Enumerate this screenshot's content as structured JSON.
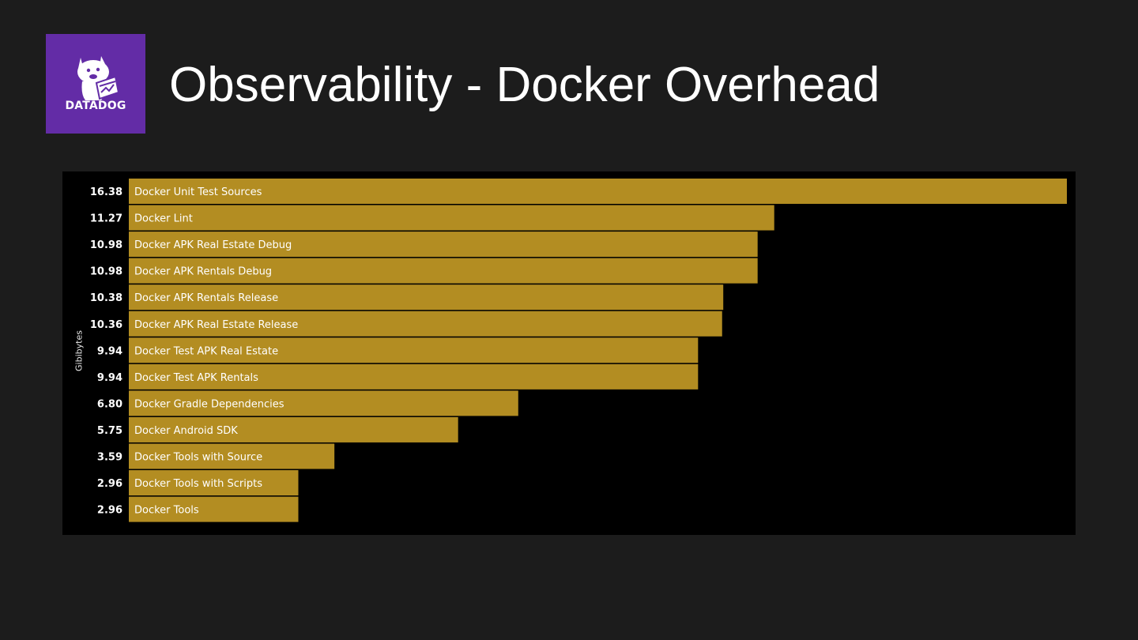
{
  "logo": {
    "text": "DATADOG",
    "background": "#632ca6"
  },
  "page": {
    "title": "Observability - Docker Overhead",
    "background": "#1c1c1c"
  },
  "chart_data": {
    "type": "bar",
    "orientation": "horizontal",
    "ylabel": "Gibibytes",
    "bar_color": "#b38d22",
    "panel_background": "#000000",
    "grid": false,
    "legend": "none",
    "categories": [
      "Docker Unit Test Sources",
      "Docker Lint",
      "Docker APK Real Estate Debug",
      "Docker APK Rentals Debug",
      "Docker APK Rentals Release",
      "Docker APK Real Estate Release",
      "Docker Test APK Real Estate",
      "Docker Test APK Rentals",
      "Docker Gradle Dependencies",
      "Docker Android SDK",
      "Docker Tools with Source",
      "Docker Tools with Scripts",
      "Docker Tools"
    ],
    "values": [
      16.38,
      11.27,
      10.98,
      10.98,
      10.38,
      10.36,
      9.94,
      9.94,
      6.8,
      5.75,
      3.59,
      2.96,
      2.96
    ],
    "value_labels": [
      "16.38",
      "11.27",
      "10.98",
      "10.98",
      "10.38",
      "10.36",
      "9.94",
      "9.94",
      "6.80",
      "5.75",
      "3.59",
      "2.96",
      "2.96"
    ]
  }
}
